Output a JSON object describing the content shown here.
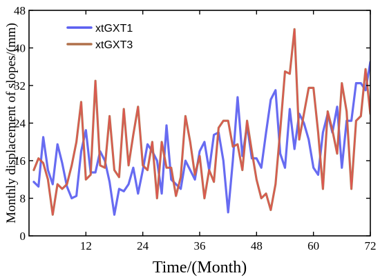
{
  "chart_data": {
    "type": "line",
    "xlabel": "Time/(Month)",
    "ylabel": "Monthly displacement of slopes/(mm)",
    "xlim": [
      0,
      72
    ],
    "ylim": [
      0,
      48
    ],
    "xticks": [
      12,
      24,
      36,
      48,
      60,
      72
    ],
    "yticks": [
      0,
      8,
      16,
      24,
      32,
      40,
      48
    ],
    "xtick_labels": [
      "12",
      "24",
      "36",
      "48",
      "60",
      "72"
    ],
    "ytick_labels": [
      "0",
      "8",
      "16",
      "24",
      "32",
      "40",
      "48"
    ],
    "grid": false,
    "legend_position": "top-left",
    "x": [
      1,
      2,
      3,
      4,
      5,
      6,
      7,
      8,
      9,
      10,
      11,
      12,
      13,
      14,
      15,
      16,
      17,
      18,
      19,
      20,
      21,
      22,
      23,
      24,
      25,
      26,
      27,
      28,
      29,
      30,
      31,
      32,
      33,
      34,
      35,
      36,
      37,
      38,
      39,
      40,
      41,
      42,
      43,
      44,
      45,
      46,
      47,
      48,
      49,
      50,
      51,
      52,
      53,
      54,
      55,
      56,
      57,
      58,
      59,
      60,
      61,
      62,
      63,
      64,
      65,
      66,
      67,
      68,
      69,
      70,
      71,
      72
    ],
    "series": [
      {
        "name": "xtGXT1",
        "color": "#5a5ef0",
        "values": [
          11.5,
          10.5,
          21,
          14,
          11,
          19.5,
          15.5,
          10.5,
          8,
          8.5,
          18,
          22.5,
          13.5,
          13.5,
          18,
          16,
          11.5,
          4.5,
          10,
          9.5,
          11,
          14.5,
          9,
          14,
          19.5,
          18,
          16,
          9,
          23.5,
          12,
          11,
          10,
          16,
          14,
          12,
          18,
          20,
          14,
          21.5,
          22,
          16,
          5,
          16,
          29.5,
          17,
          23.5,
          16.5,
          16.5,
          14.5,
          22,
          29,
          31,
          17.5,
          14.5,
          27,
          18.5,
          26,
          24,
          20.5,
          14.5,
          13,
          22,
          26,
          22,
          27.5,
          14.5,
          24.5,
          24.5,
          32.5,
          32.5,
          31,
          37
        ]
      },
      {
        "name": "xtGXT3",
        "color": "#b0704a",
        "values": [
          14,
          16.5,
          15.5,
          12,
          4.5,
          11,
          10,
          11,
          15,
          20,
          28.5,
          12,
          13,
          33,
          15,
          14.5,
          25.5,
          14,
          12.5,
          27,
          15,
          21.5,
          27.5,
          15,
          14,
          20,
          8,
          20,
          14.5,
          14.5,
          8.5,
          12.5,
          25.5,
          20,
          13,
          17,
          8,
          14,
          11.5,
          23,
          24.5,
          24.5,
          19,
          19.5,
          14,
          24.5,
          18,
          12,
          8,
          9,
          5.5,
          11,
          22.5,
          35,
          34.5,
          44,
          20.5,
          26,
          31.5,
          31.5,
          22,
          10,
          26.5,
          22.5,
          17.5,
          32.5,
          26.5,
          10,
          24.5,
          25.5,
          35.5,
          26
        ]
      }
    ],
    "render_colors": [
      "#5a5ef0",
      "#e84f4f",
      "#b0704a"
    ]
  }
}
